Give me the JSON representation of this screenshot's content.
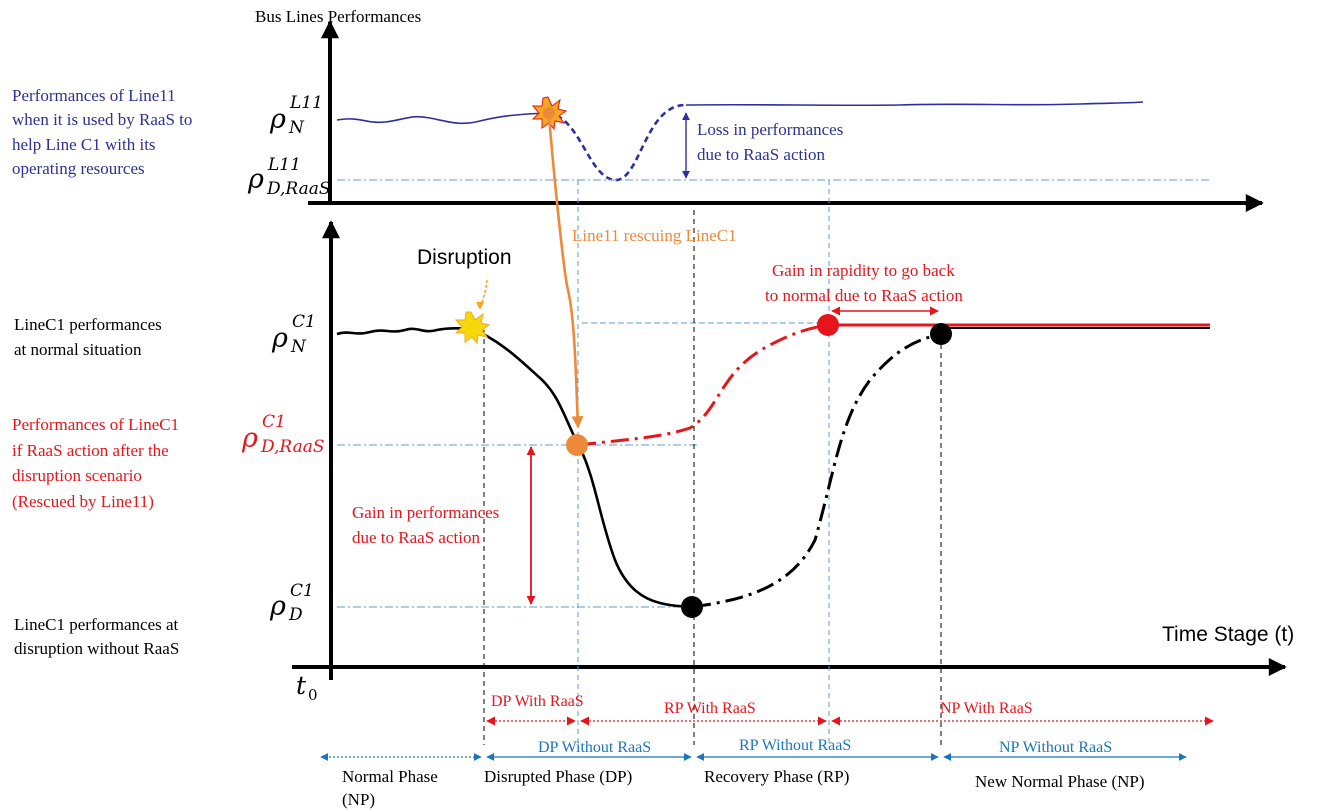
{
  "top_panel": {
    "title": "Bus Lines Performances",
    "side_label": [
      "Performances of Line11",
      "when it is used by RaaS to",
      "help Line C1 with its",
      "operating resources"
    ],
    "rho_normal": {
      "base": "ρ",
      "sup": "L11",
      "sub": "N"
    },
    "rho_disrupted": {
      "base": "ρ",
      "sup": "L11",
      "sub": "D,RaaS"
    },
    "loss_label": [
      "Loss in performances",
      "due to RaaS action"
    ]
  },
  "bottom_panel": {
    "side_normal": [
      "LineC1 performances",
      "at normal  situation"
    ],
    "side_raas": [
      "Performances of LineC1",
      "if RaaS action after the",
      "disruption scenario",
      "(Rescued by Line11)"
    ],
    "side_disrupted": [
      "LineC1 performances at",
      "disruption without RaaS"
    ],
    "rho_normal": {
      "base": "ρ",
      "sup": "C1",
      "sub": "N"
    },
    "rho_raas": {
      "base": "ρ",
      "sup": "C1",
      "sub": "D,RaaS"
    },
    "rho_disrupted": {
      "base": "ρ",
      "sup": "C1",
      "sub": "D"
    },
    "disruption": "Disruption",
    "rescue": "Line11 rescuing LineC1",
    "gain_rapidity": [
      "Gain in rapidity to go back",
      "to normal due to RaaS action"
    ],
    "gain_perf": [
      "Gain in performances",
      "due to RaaS action"
    ],
    "x_axis_label": "Time Stage (t)",
    "t0": {
      "base": "t",
      "sub": "0"
    }
  },
  "phases_raas": [
    "DP With  RaaS",
    "RP With  RaaS",
    "NP With  RaaS"
  ],
  "phases_no_raas": [
    "DP Without  RaaS",
    "RP Without  RaaS",
    "NP Without  RaaS"
  ],
  "phases_names": [
    "Normal Phase",
    "(NP)",
    "Disrupted Phase (DP)",
    "Recovery Phase (RP)",
    "New Normal Phase (NP)"
  ],
  "colors": {
    "blue_text": "#2e3192",
    "line11": "#2b2fa0",
    "red": "#e8141b",
    "orange": "#ed8a3a",
    "phase_blue": "#1b75bc",
    "guide": "#5b9bd5",
    "black": "#000000"
  }
}
